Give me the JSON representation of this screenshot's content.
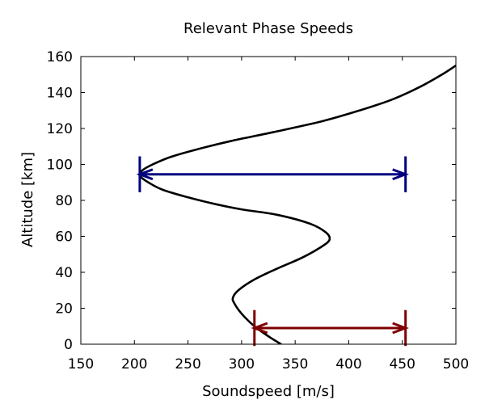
{
  "chart_data": {
    "type": "line",
    "title": "Relevant Phase Speeds",
    "xlabel": "Soundspeed [m/s]",
    "ylabel": "Altitude [km]",
    "xlim": [
      150,
      500
    ],
    "ylim": [
      0,
      160
    ],
    "x_ticks": [
      150,
      200,
      250,
      300,
      350,
      400,
      450,
      500
    ],
    "y_ticks": [
      0,
      20,
      40,
      60,
      80,
      100,
      120,
      140,
      160
    ],
    "grid": false,
    "legend": "none",
    "series": [
      {
        "color": "#000000",
        "points": [
          [
            337,
            0
          ],
          [
            326,
            4
          ],
          [
            312,
            10
          ],
          [
            300,
            17
          ],
          [
            293,
            23
          ],
          [
            292,
            26
          ],
          [
            297,
            30
          ],
          [
            312,
            36
          ],
          [
            333,
            42
          ],
          [
            356,
            48
          ],
          [
            374,
            54
          ],
          [
            382,
            58
          ],
          [
            379,
            62
          ],
          [
            364,
            67
          ],
          [
            333,
            72
          ],
          [
            300,
            75
          ],
          [
            275,
            78
          ],
          [
            248,
            82
          ],
          [
            226,
            86
          ],
          [
            213,
            90
          ],
          [
            206,
            93
          ],
          [
            205,
            94.5
          ],
          [
            208,
            97
          ],
          [
            217,
            100
          ],
          [
            233,
            104
          ],
          [
            256,
            108
          ],
          [
            290,
            113
          ],
          [
            330,
            118
          ],
          [
            375,
            124
          ],
          [
            410,
            130
          ],
          [
            440,
            136
          ],
          [
            466,
            143
          ],
          [
            487,
            150
          ],
          [
            500,
            155
          ]
        ]
      }
    ],
    "annotations": [
      {
        "color": "#00007f",
        "x_start": 205,
        "x_end": 453,
        "y": 94.5,
        "bar_half_height": 10
      },
      {
        "color": "#7f0000",
        "x_start": 312,
        "x_end": 453,
        "y": 9,
        "bar_half_height": 10
      }
    ]
  }
}
